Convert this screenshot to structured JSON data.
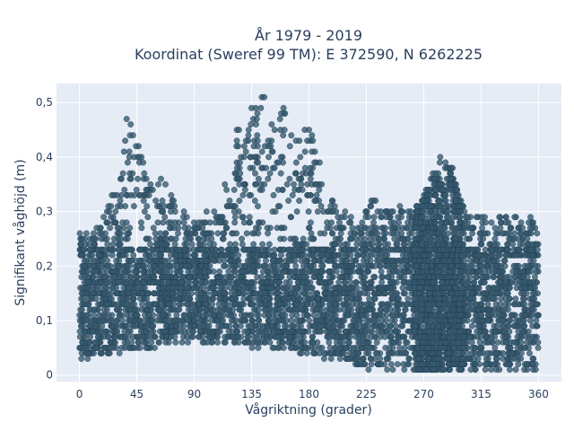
{
  "chart_data": {
    "type": "scatter",
    "title_line1": "År 1979 - 2019",
    "title_line2": "Koordinat (Sweref 99 TM): E 372590, N 6262225",
    "xlabel": "Vågriktning (grader)",
    "ylabel": "Signifikant våghöjd (m)",
    "xlim": [
      -18,
      378
    ],
    "ylim": [
      -0.012,
      0.535
    ],
    "x_ticks": [
      0,
      45,
      90,
      135,
      180,
      225,
      270,
      315,
      360
    ],
    "x_tick_labels": [
      "0",
      "45",
      "90",
      "135",
      "180",
      "225",
      "270",
      "315",
      "360"
    ],
    "y_ticks": [
      0,
      0.1,
      0.2,
      0.3,
      0.4,
      0.5
    ],
    "y_tick_labels": [
      "0",
      "0,1",
      "0,2",
      "0,3",
      "0,4",
      "0,5"
    ],
    "grid": true,
    "colors": {
      "marker": "#34586e",
      "marker_outline": "#1f3a4b",
      "plot_background": "#e5ecf6",
      "grid": "#ffffff",
      "text": "#2a3f5f"
    },
    "series": [
      {
        "envelope_profile": [
          [
            0,
            0.26
          ],
          [
            10,
            0.26
          ],
          [
            20,
            0.32
          ],
          [
            30,
            0.35
          ],
          [
            35,
            0.43
          ],
          [
            40,
            0.47
          ],
          [
            45,
            0.44
          ],
          [
            50,
            0.39
          ],
          [
            55,
            0.36
          ],
          [
            60,
            0.35
          ],
          [
            65,
            0.36
          ],
          [
            70,
            0.34
          ],
          [
            80,
            0.3
          ],
          [
            90,
            0.28
          ],
          [
            100,
            0.3
          ],
          [
            110,
            0.3
          ],
          [
            115,
            0.38
          ],
          [
            120,
            0.44
          ],
          [
            125,
            0.47
          ],
          [
            130,
            0.46
          ],
          [
            135,
            0.49
          ],
          [
            140,
            0.5
          ],
          [
            145,
            0.51
          ],
          [
            150,
            0.47
          ],
          [
            155,
            0.47
          ],
          [
            160,
            0.49
          ],
          [
            165,
            0.48
          ],
          [
            170,
            0.47
          ],
          [
            175,
            0.46
          ],
          [
            180,
            0.45
          ],
          [
            185,
            0.43
          ],
          [
            190,
            0.38
          ],
          [
            200,
            0.31
          ],
          [
            210,
            0.3
          ],
          [
            220,
            0.28
          ],
          [
            230,
            0.33
          ],
          [
            240,
            0.3
          ],
          [
            250,
            0.32
          ],
          [
            260,
            0.3
          ],
          [
            270,
            0.33
          ],
          [
            278,
            0.38
          ],
          [
            283,
            0.4
          ],
          [
            290,
            0.4
          ],
          [
            298,
            0.33
          ],
          [
            305,
            0.3
          ],
          [
            315,
            0.29
          ],
          [
            325,
            0.28
          ],
          [
            335,
            0.3
          ],
          [
            345,
            0.28
          ],
          [
            355,
            0.29
          ],
          [
            360,
            0.26
          ]
        ],
        "peak_points": [
          [
            37,
            0.47
          ],
          [
            42,
            0.44
          ],
          [
            135,
            0.49
          ],
          [
            145,
            0.51
          ],
          [
            160,
            0.49
          ],
          [
            180,
            0.45
          ],
          [
            283,
            0.4
          ]
        ],
        "floor_profile": [
          [
            0,
            0.03
          ],
          [
            90,
            0.06
          ],
          [
            150,
            0.05
          ],
          [
            200,
            0.03
          ],
          [
            225,
            0.01
          ],
          [
            360,
            0.01
          ]
        ]
      }
    ]
  }
}
